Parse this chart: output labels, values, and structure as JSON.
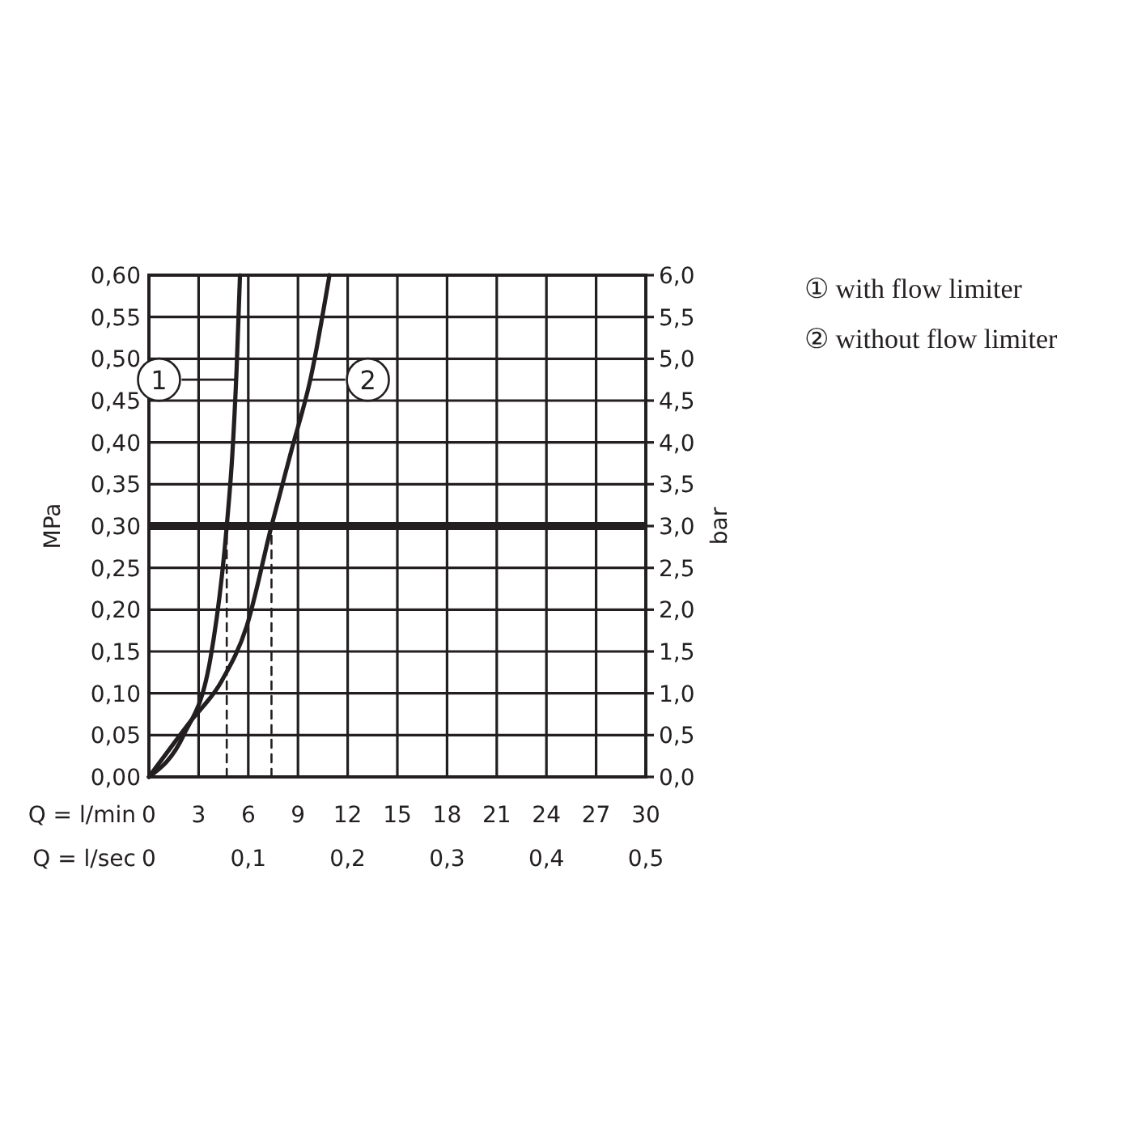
{
  "chart_data": {
    "type": "line",
    "xlabel": "Q = l/min",
    "x2label": "Q = l/sec",
    "ylabel": "MPa",
    "y2label": "bar",
    "xlim": [
      0,
      30
    ],
    "xticks": [
      0,
      3,
      6,
      9,
      12,
      15,
      18,
      21,
      24,
      27,
      30
    ],
    "x2lim": [
      0,
      0.5
    ],
    "x2ticks": [
      {
        "value": 0,
        "label": "0"
      },
      {
        "value": 0.1,
        "label": "0,1"
      },
      {
        "value": 0.2,
        "label": "0,2"
      },
      {
        "value": 0.3,
        "label": "0,3"
      },
      {
        "value": 0.4,
        "label": "0,4"
      },
      {
        "value": 0.5,
        "label": "0,5"
      }
    ],
    "ylim": [
      0,
      0.6
    ],
    "yticks": [
      {
        "value": 0,
        "label": "0,00"
      },
      {
        "value": 0.05,
        "label": "0,05"
      },
      {
        "value": 0.1,
        "label": "0,10"
      },
      {
        "value": 0.15,
        "label": "0,15"
      },
      {
        "value": 0.2,
        "label": "0,20"
      },
      {
        "value": 0.25,
        "label": "0,25"
      },
      {
        "value": 0.3,
        "label": "0,30"
      },
      {
        "value": 0.35,
        "label": "0,35"
      },
      {
        "value": 0.4,
        "label": "0,40"
      },
      {
        "value": 0.45,
        "label": "0,45"
      },
      {
        "value": 0.5,
        "label": "0,50"
      },
      {
        "value": 0.55,
        "label": "0,55"
      },
      {
        "value": 0.6,
        "label": "0,60"
      }
    ],
    "y2lim": [
      0,
      6
    ],
    "y2ticks": [
      {
        "value": 0,
        "label": "0,0"
      },
      {
        "value": 0.5,
        "label": "0,5"
      },
      {
        "value": 1,
        "label": "1,0"
      },
      {
        "value": 1.5,
        "label": "1,5"
      },
      {
        "value": 2,
        "label": "2,0"
      },
      {
        "value": 2.5,
        "label": "2,5"
      },
      {
        "value": 3,
        "label": "3,0"
      },
      {
        "value": 3.5,
        "label": "3,5"
      },
      {
        "value": 4,
        "label": "4,0"
      },
      {
        "value": 4.5,
        "label": "4,5"
      },
      {
        "value": 5,
        "label": "5,0"
      },
      {
        "value": 5.5,
        "label": "5,5"
      },
      {
        "value": 6,
        "label": "6,0"
      }
    ],
    "grid": true,
    "legend": "right",
    "line_style": "solid",
    "marker": "none",
    "series": [
      {
        "name": "① with flow limiter",
        "color": "#231f20",
        "x": [
          0,
          2.1,
          3.7,
          4.7,
          5.05,
          5.3,
          5.5
        ],
        "values": [
          0,
          0.05,
          0.14,
          0.3,
          0.39,
          0.49,
          0.6
        ]
      },
      {
        "name": "② without flow limiter",
        "color": "#231f20",
        "x": [
          0,
          2.45,
          4.4,
          5.9,
          7.4,
          8.6,
          9.8,
          10.9
        ],
        "values": [
          0,
          0.065,
          0.115,
          0.18,
          0.3,
          0.39,
          0.48,
          0.6
        ]
      },
      {
        "color": "#231f20",
        "line_style": "dashed",
        "x": [
          4.7,
          4.7
        ],
        "values": [
          0,
          0.3
        ]
      },
      {
        "color": "#231f20",
        "line_style": "dashed",
        "x": [
          7.4,
          7.4
        ],
        "values": [
          0,
          0.3
        ]
      }
    ],
    "ref_lines": [
      {
        "axis": "y",
        "value": 0.3,
        "color": "#231f20"
      }
    ],
    "annotations": [
      {
        "text": "1",
        "x": 5.3,
        "y": 0.475
      },
      {
        "text": "2",
        "x": 9.8,
        "y": 0.475
      }
    ]
  }
}
